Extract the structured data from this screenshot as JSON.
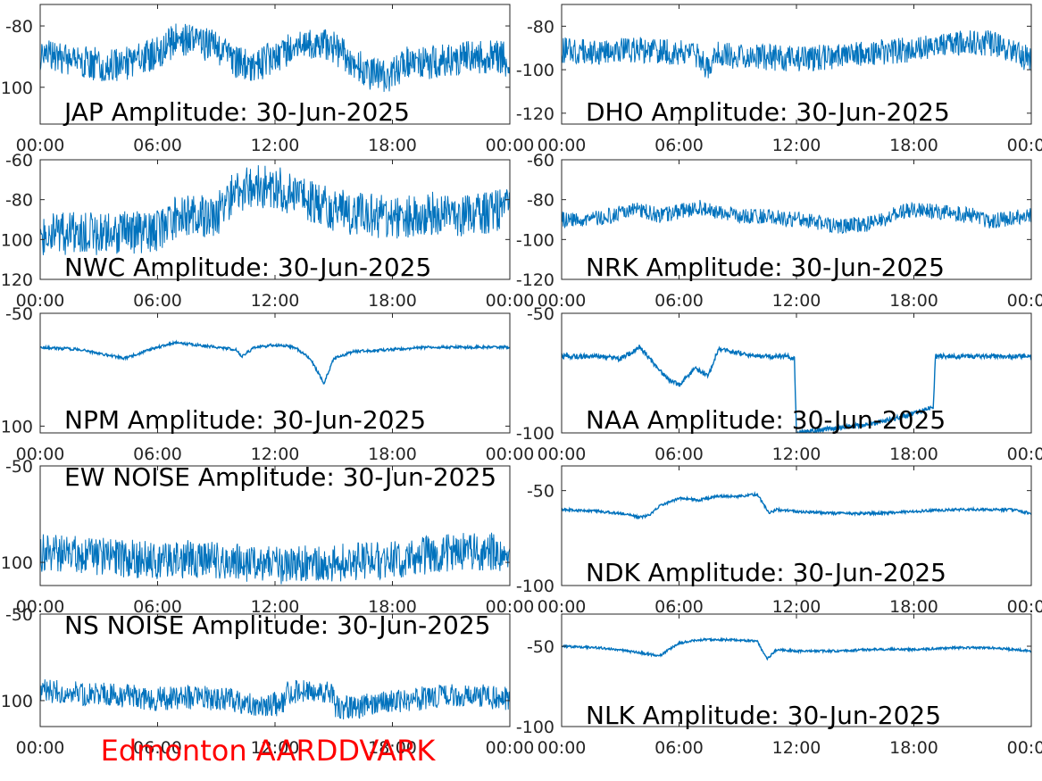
{
  "figure": {
    "footer": "Edmonton AARDDVARK",
    "footer_color": "#ff0000",
    "line_color": "#0072bd",
    "axis_color": "#262626"
  },
  "chart_data": [
    {
      "type": "line",
      "title": "JAP Amplitude: 30-Jun-2025",
      "x_ticks": [
        "00:00",
        "06:00",
        "12:00",
        "18:00",
        "00:00"
      ],
      "y_ticks": [
        "-80",
        "-100"
      ],
      "y_tick_values": [
        -80,
        -100
      ],
      "ylim": [
        -112,
        -73
      ],
      "noise": 5.5,
      "series": [
        {
          "x": [
            0,
            2,
            4,
            6,
            7,
            8,
            9,
            10,
            11,
            12,
            13,
            14,
            15,
            16,
            17,
            18,
            19,
            20,
            21,
            22,
            23,
            23.7,
            24
          ],
          "y": [
            -89,
            -92,
            -93,
            -89,
            -84,
            -85,
            -87,
            -92,
            -93,
            -90,
            -87,
            -86,
            -87,
            -92,
            -96,
            -96,
            -91,
            -92,
            -91,
            -90,
            -90,
            -90,
            -96
          ]
        }
      ]
    },
    {
      "type": "line",
      "title": "DHO Amplitude: 30-Jun-2025",
      "x_ticks": [
        "00:00",
        "06:00",
        "12:00",
        "18:00",
        "00:00"
      ],
      "y_ticks": [
        "-80",
        "-100",
        "-120"
      ],
      "y_tick_values": [
        -80,
        -100,
        -120
      ],
      "ylim": [
        -125,
        -70
      ],
      "noise": 6,
      "series": [
        {
          "x": [
            0,
            2,
            4,
            6,
            7,
            7.5,
            8,
            9,
            10,
            12,
            14,
            16,
            18,
            20,
            21,
            22,
            23,
            24
          ],
          "y": [
            -91,
            -92,
            -91,
            -92,
            -93,
            -100,
            -93,
            -94,
            -94,
            -95,
            -94,
            -92,
            -91,
            -88,
            -87,
            -88,
            -91,
            -96
          ]
        }
      ]
    },
    {
      "type": "line",
      "title": "NWC Amplitude: 30-Jun-2025",
      "x_ticks": [
        "00:00",
        "06:00",
        "12:00",
        "18:00",
        "00:00"
      ],
      "y_ticks": [
        "-60",
        "-80",
        "-100",
        "-120"
      ],
      "y_tick_values": [
        -60,
        -80,
        -100,
        -120
      ],
      "ylim": [
        -120,
        -60
      ],
      "noise": 11,
      "series": [
        {
          "x": [
            0,
            3,
            6,
            7,
            8,
            9,
            10,
            11,
            12,
            13,
            14,
            15,
            16,
            17,
            18,
            19,
            20,
            21,
            22,
            23,
            24
          ],
          "y": [
            -97,
            -97,
            -96,
            -88,
            -88,
            -88,
            -76,
            -73,
            -74,
            -77,
            -81,
            -85,
            -87,
            -88,
            -89,
            -88,
            -87,
            -88,
            -89,
            -86,
            -85
          ]
        }
      ]
    },
    {
      "type": "line",
      "title": "NRK Amplitude: 30-Jun-2025",
      "x_ticks": [
        "00:00",
        "06:00",
        "12:00",
        "18:00",
        "00:00"
      ],
      "y_ticks": [
        "-60",
        "-80",
        "-100",
        "-120"
      ],
      "y_tick_values": [
        -60,
        -80,
        -100,
        -120
      ],
      "ylim": [
        -120,
        -60
      ],
      "noise": 4,
      "series": [
        {
          "x": [
            0,
            2,
            4,
            5,
            6,
            7,
            8,
            9,
            10,
            12,
            14,
            16,
            17,
            18,
            19,
            20,
            21,
            22,
            23,
            24
          ],
          "y": [
            -90,
            -89,
            -85,
            -88,
            -86,
            -84,
            -86,
            -88,
            -88,
            -90,
            -93,
            -92,
            -87,
            -85,
            -86,
            -87,
            -88,
            -91,
            -89,
            -88
          ]
        }
      ]
    },
    {
      "type": "line",
      "title": "NPM Amplitude: 30-Jun-2025",
      "x_ticks": [
        "00:00",
        "06:00",
        "12:00",
        "18:00",
        "00:00"
      ],
      "y_ticks": [
        "-50",
        "-100"
      ],
      "y_tick_values": [
        -50,
        -100
      ],
      "ylim": [
        -103,
        -50
      ],
      "noise": 0.6,
      "series": [
        {
          "x": [
            0,
            2,
            4.3,
            6,
            7,
            8,
            9,
            10,
            10.3,
            11,
            12,
            13,
            13.8,
            14.5,
            15,
            16,
            18,
            20,
            22,
            24
          ],
          "y": [
            -65,
            -66,
            -70,
            -65,
            -63,
            -64,
            -65,
            -66,
            -69,
            -65,
            -64,
            -65,
            -70,
            -81,
            -70,
            -67,
            -66,
            -65,
            -65,
            -65
          ]
        }
      ]
    },
    {
      "type": "line",
      "title": "NAA Amplitude: 30-Jun-2025",
      "x_ticks": [
        "00:00",
        "06:00",
        "12:00",
        "18:00",
        "00:00"
      ],
      "y_ticks": [
        "-50",
        "-100"
      ],
      "y_tick_values": [
        -50,
        -100
      ],
      "ylim": [
        -100,
        -50
      ],
      "noise": 1,
      "series": [
        {
          "x": [
            0,
            2,
            3,
            4,
            4.6,
            5.5,
            6,
            6.8,
            7.5,
            8,
            10,
            11.5,
            11.9,
            12.0,
            14,
            16,
            18,
            19.0,
            19.1,
            20,
            22,
            24
          ],
          "y": [
            -68,
            -68,
            -69,
            -64,
            -70,
            -78,
            -80,
            -73,
            -76,
            -65,
            -68,
            -68,
            -69,
            -100,
            -98,
            -96,
            -92,
            -89,
            -68,
            -68,
            -68,
            -68
          ]
        }
      ]
    },
    {
      "type": "line",
      "title": "EW NOISE Amplitude: 30-Jun-2025",
      "x_ticks": [
        "00:00",
        "06:00",
        "12:00",
        "18:00",
        "00:00"
      ],
      "y_ticks": [
        "-50",
        "-100"
      ],
      "y_tick_values": [
        -50,
        -100
      ],
      "ylim": [
        -112,
        -50
      ],
      "noise": 10,
      "series": [
        {
          "x": [
            0,
            3,
            6,
            8,
            10,
            12,
            14,
            16,
            18,
            20,
            22,
            24
          ],
          "y": [
            -95,
            -97,
            -99,
            -98,
            -100,
            -102,
            -100,
            -100,
            -99,
            -96,
            -94,
            -95
          ]
        }
      ]
    },
    {
      "type": "line",
      "title": "NDK Amplitude: 30-Jun-2025",
      "x_ticks": [
        "00:00",
        "06:00",
        "12:00",
        "18:00",
        "00:00"
      ],
      "y_ticks": [
        "-50",
        "-100"
      ],
      "y_tick_values": [
        -50,
        -100
      ],
      "ylim": [
        -100,
        -37
      ],
      "noise": 0.7,
      "series": [
        {
          "x": [
            0,
            2,
            3,
            4,
            4.5,
            5,
            6,
            7,
            8,
            9,
            10,
            10.6,
            11,
            12,
            14,
            16,
            18,
            20,
            22,
            23,
            24
          ],
          "y": [
            -60,
            -61,
            -62,
            -64,
            -63,
            -58,
            -54,
            -55,
            -53,
            -53,
            -52,
            -62,
            -60,
            -61,
            -62,
            -62,
            -61,
            -60,
            -60,
            -60,
            -62
          ]
        }
      ]
    },
    {
      "type": "line",
      "title": "NS NOISE Amplitude: 30-Jun-2025",
      "x_ticks": [
        "00:00",
        "06:00",
        "12:00",
        "18:00",
        "00:00"
      ],
      "y_ticks": [
        "-50",
        "-100"
      ],
      "y_tick_values": [
        -50,
        -100
      ],
      "ylim": [
        -115,
        -50
      ],
      "noise": 7,
      "series": [
        {
          "x": [
            0,
            2,
            4,
            6,
            8,
            10,
            11,
            12.5,
            12.6,
            15,
            15.1,
            16,
            18,
            20,
            22,
            24
          ],
          "y": [
            -94,
            -96,
            -97,
            -99,
            -98,
            -100,
            -102,
            -102,
            -95,
            -95,
            -104,
            -104,
            -101,
            -98,
            -97,
            -99
          ]
        }
      ]
    },
    {
      "type": "line",
      "title": "NLK Amplitude: 30-Jun-2025",
      "x_ticks": [
        "00:00",
        "06:00",
        "12:00",
        "18:00",
        "00:00"
      ],
      "y_ticks": [
        "-50",
        "-100"
      ],
      "y_tick_values": [
        -50,
        -100
      ],
      "ylim": [
        -100,
        -30
      ],
      "noise": 0.7,
      "series": [
        {
          "x": [
            0,
            2,
            4,
            5,
            6,
            7,
            8,
            9,
            10,
            10.5,
            11,
            12,
            14,
            16,
            18,
            20,
            22,
            24
          ],
          "y": [
            -50,
            -51,
            -54,
            -56,
            -48,
            -46,
            -46,
            -46,
            -47,
            -58,
            -52,
            -53,
            -53,
            -52,
            -52,
            -51,
            -51,
            -53
          ]
        }
      ]
    }
  ]
}
